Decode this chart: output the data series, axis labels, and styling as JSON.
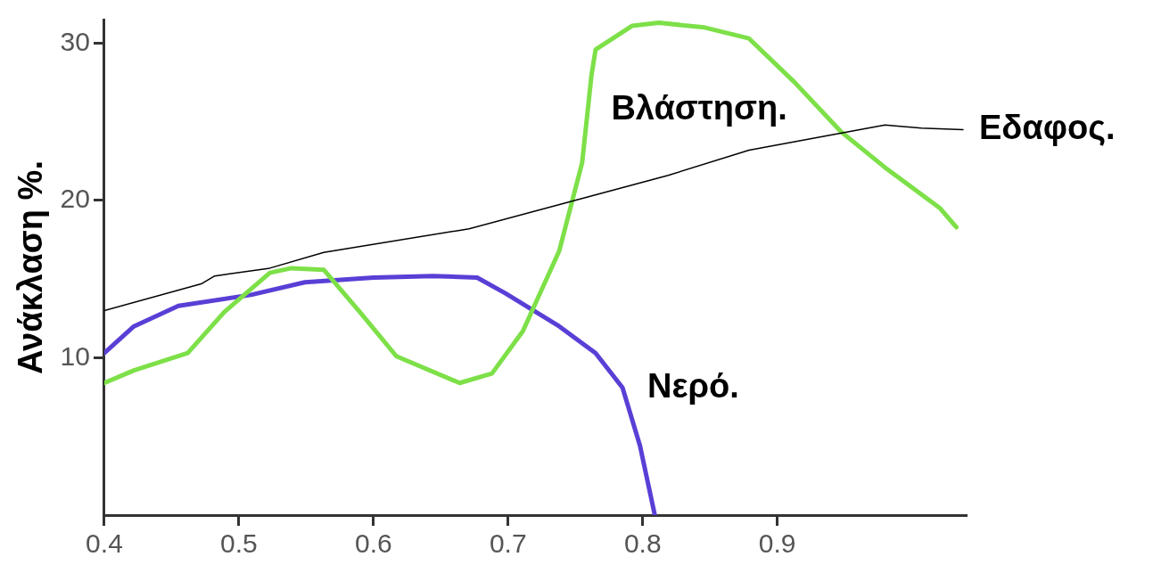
{
  "chart_data": {
    "type": "line",
    "ylabel": "Ανάκλαση %.",
    "xlim": [
      0.4,
      1.04
    ],
    "xticks": [
      0.4,
      0.5,
      0.6,
      0.7,
      0.8,
      0.9
    ],
    "ylim": [
      0,
      31.5
    ],
    "yticks": [
      10,
      20,
      30
    ],
    "grid": false,
    "legend": false,
    "marker": "none",
    "series": [
      {
        "name": "Εδαφος.",
        "color": "#000000",
        "x": [
          0.4,
          0.472,
          0.482,
          0.523,
          0.563,
          0.671,
          0.745,
          0.819,
          0.879,
          0.98,
          1.007,
          1.038
        ],
        "values": [
          13.0,
          14.7,
          15.2,
          15.7,
          16.7,
          18.2,
          19.9,
          21.6,
          23.2,
          24.8,
          24.6,
          24.5
        ]
      },
      {
        "name": "Βλάστηση.",
        "color": "#7de048",
        "x": [
          0.4,
          0.422,
          0.462,
          0.489,
          0.523,
          0.539,
          0.563,
          0.59,
          0.617,
          0.664,
          0.688,
          0.711,
          0.738,
          0.755,
          0.762,
          0.765,
          0.792,
          0.812,
          0.846,
          0.879,
          0.913,
          0.947,
          0.98,
          1.021,
          1.033
        ],
        "values": [
          8.4,
          9.2,
          10.3,
          12.9,
          15.4,
          15.7,
          15.6,
          12.9,
          10.1,
          8.4,
          9.0,
          11.7,
          16.8,
          22.4,
          28.0,
          29.6,
          31.1,
          31.3,
          31.0,
          30.3,
          27.5,
          24.4,
          22.1,
          19.5,
          18.3
        ]
      },
      {
        "name": "Νερό.",
        "color": "#5a3fd6",
        "x": [
          0.4,
          0.422,
          0.455,
          0.509,
          0.549,
          0.6,
          0.644,
          0.677,
          0.698,
          0.738,
          0.765,
          0.785,
          0.798,
          0.809
        ],
        "values": [
          10.3,
          12.0,
          13.3,
          14.0,
          14.8,
          15.1,
          15.2,
          15.1,
          14.1,
          12.0,
          10.3,
          8.1,
          4.4,
          0
        ]
      }
    ]
  }
}
